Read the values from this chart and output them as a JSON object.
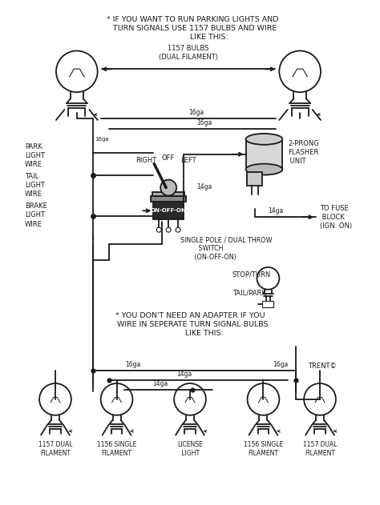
{
  "bg_color": "#ffffff",
  "line_color": "#1a1a1a",
  "top_note": "* IF YOU WANT TO RUN PARKING LIGHTS AND\n  TURN SIGNALS USE 1157 BULBS AND WIRE\n              LIKE THIS:",
  "bulbs_label": "1157 BULBS\n(DUAL FILAMENT)",
  "left_labels": [
    "PARK\nLIGHT\nWIRE",
    "TAIL\nLIGHT\nWIRE",
    "BRAKE\nLIGHT\nWIRE"
  ],
  "switch_text": "ON-OFF-ON",
  "switch_dir_right": "RIGHT",
  "switch_dir_off": "OFF",
  "switch_dir_left": "LEFT",
  "switch_label": "SINGLE POLE / DUAL THROW\n         SWITCH\n       (ON-OFF-ON)",
  "flasher_label": "2-PRONG\nFLASHER\n UNIT",
  "fuse_label": "TO FUSE\n BLOCK\n(IGN. ON)",
  "stop_turn_label": "STOP/TURN",
  "tail_park_label": "TAIL/PARK",
  "bottom_note": "* YOU DON'T NEED AN ADAPTER IF YOU\n  WIRE IN SEPERATE TURN SIGNAL BULBS\n            LIKE THIS:",
  "copyright": "TRENT©",
  "bottom_labels": [
    "1157 DUAL\nFILAMENT",
    "1156 SINGLE\nFILAMENT",
    "LICENSE\n LIGHT",
    "1156 SINGLE\nFILAMENT",
    "1157 DUAL\nFILAMENT"
  ],
  "lw": 1.3,
  "lw_thick": 1.8
}
